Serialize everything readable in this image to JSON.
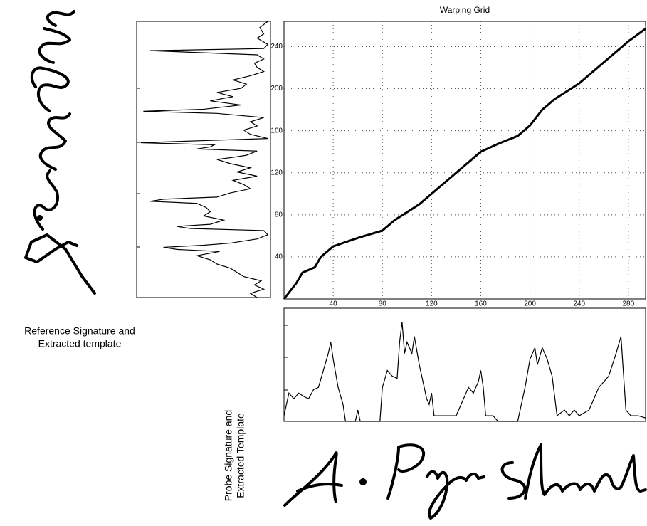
{
  "chart_data": [
    {
      "type": "line",
      "title": "Warping Grid",
      "x": [
        0,
        10,
        15,
        25,
        30,
        40,
        60,
        80,
        90,
        110,
        125,
        140,
        160,
        175,
        190,
        200,
        210,
        220,
        240,
        260,
        280,
        294
      ],
      "values": [
        0,
        15,
        25,
        30,
        40,
        50,
        58,
        65,
        75,
        90,
        105,
        120,
        140,
        148,
        155,
        165,
        180,
        190,
        205,
        225,
        245,
        257
      ],
      "color": "#000000",
      "xlim": [
        0,
        294
      ],
      "ylim": [
        0,
        264
      ],
      "xticks": [
        40,
        80,
        120,
        160,
        200,
        240,
        280
      ],
      "yticks": [
        40,
        80,
        120,
        160,
        200,
        240
      ],
      "grid": true
    },
    {
      "type": "profile",
      "orientation": "vertical",
      "color": "#000000",
      "xlim": [
        0,
        264
      ],
      "ylim": [
        0,
        1
      ],
      "x": [
        0,
        4,
        8,
        12,
        16,
        20,
        24,
        28,
        32,
        36,
        40,
        44,
        46,
        48,
        50,
        52,
        56,
        60,
        64,
        66,
        68,
        70,
        74,
        78,
        82,
        86,
        90,
        92,
        94,
        96,
        100,
        104,
        108,
        112,
        116,
        120,
        124,
        128,
        132,
        134,
        136,
        140,
        142,
        144,
        146,
        148,
        150,
        152,
        156,
        160,
        164,
        168,
        172,
        176,
        178,
        180,
        184,
        188,
        192,
        196,
        200,
        204,
        208,
        212,
        216,
        220,
        224,
        228,
        232,
        236,
        238,
        242,
        248,
        252,
        258,
        264
      ],
      "values": [
        0.9,
        0.85,
        0.95,
        0.88,
        0.93,
        0.8,
        0.75,
        0.7,
        0.6,
        0.55,
        0.45,
        0.62,
        0.3,
        0.2,
        0.5,
        0.7,
        0.9,
        0.98,
        0.95,
        0.4,
        0.3,
        0.55,
        0.65,
        0.5,
        0.55,
        0.52,
        0.45,
        0.1,
        0.2,
        0.6,
        0.7,
        0.85,
        0.8,
        0.72,
        0.9,
        0.75,
        0.85,
        0.7,
        0.6,
        0.72,
        0.82,
        0.9,
        0.45,
        0.55,
        0.58,
        0.03,
        0.5,
        0.98,
        0.85,
        0.8,
        0.9,
        0.85,
        0.95,
        0.6,
        0.05,
        0.5,
        0.78,
        0.55,
        0.72,
        0.6,
        0.78,
        0.82,
        0.72,
        0.85,
        0.95,
        0.9,
        0.88,
        0.95,
        0.9,
        0.1,
        0.95,
        0.98,
        0.9,
        0.95,
        0.92,
        0.98
      ]
    },
    {
      "type": "profile",
      "orientation": "horizontal",
      "color": "#000000",
      "xlim": [
        0,
        294
      ],
      "ylim": [
        0,
        1
      ],
      "x": [
        0,
        4,
        8,
        12,
        16,
        20,
        24,
        28,
        32,
        36,
        38,
        40,
        44,
        48,
        50,
        58,
        60,
        62,
        78,
        80,
        84,
        88,
        92,
        94,
        96,
        98,
        100,
        104,
        106,
        110,
        114,
        116,
        118,
        120,
        122,
        130,
        136,
        140,
        150,
        154,
        158,
        160,
        162,
        164,
        170,
        174,
        190,
        196,
        200,
        204,
        206,
        210,
        214,
        218,
        222,
        228,
        232,
        236,
        240,
        248,
        256,
        264,
        270,
        274,
        278,
        282,
        288,
        294
      ],
      "values": [
        0.05,
        0.25,
        0.2,
        0.25,
        0.22,
        0.2,
        0.28,
        0.3,
        0.45,
        0.6,
        0.7,
        0.55,
        0.3,
        0.15,
        0,
        0,
        0.1,
        0,
        0,
        0.3,
        0.45,
        0.4,
        0.38,
        0.7,
        0.88,
        0.6,
        0.7,
        0.6,
        0.75,
        0.5,
        0.3,
        0.2,
        0.15,
        0.25,
        0.05,
        0.05,
        0.05,
        0.05,
        0.3,
        0.25,
        0.35,
        0.45,
        0.3,
        0.05,
        0.05,
        0,
        0,
        0.3,
        0.55,
        0.65,
        0.5,
        0.65,
        0.55,
        0.4,
        0.05,
        0.1,
        0.05,
        0.1,
        0.05,
        0.1,
        0.3,
        0.4,
        0.6,
        0.75,
        0.1,
        0.05,
        0.05,
        0.03
      ]
    }
  ],
  "figure": {
    "reference_caption": [
      "Reference Signature and",
      "Extracted template"
    ],
    "probe_caption": [
      "Probe Signature and",
      "Extracted Template"
    ]
  }
}
